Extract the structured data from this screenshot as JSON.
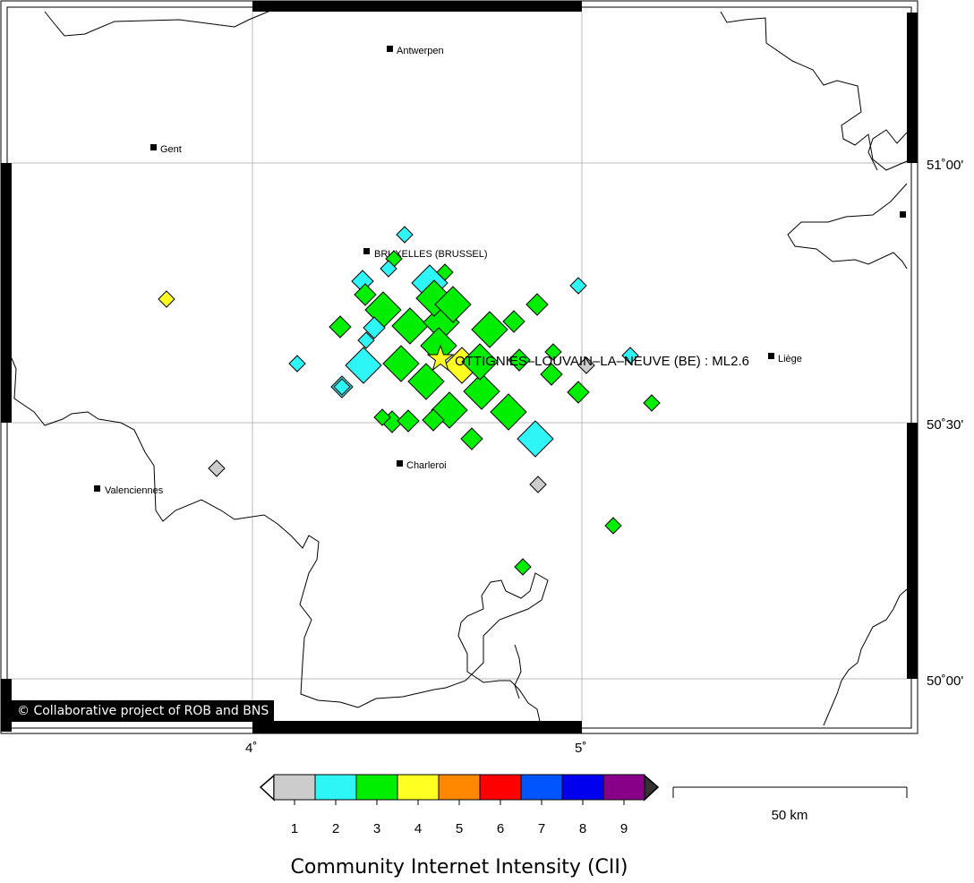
{
  "map": {
    "epicenter_label": "OTTIGNIES–LOUVAIN–LA–NEUVE (BE) : ML2.6",
    "credit": "© Collaborative project of ROB and BNS",
    "lon_labels": [
      "4˚",
      "5˚"
    ],
    "lat_labels": [
      "51˚00'",
      "50˚30'",
      "50˚00'"
    ],
    "cities": [
      {
        "name": "Antwerpen"
      },
      {
        "name": "Gent"
      },
      {
        "name": "BRUXELLES (BRUSSEL)"
      },
      {
        "name": "Charleroi"
      },
      {
        "name": "Valenciennes"
      },
      {
        "name": "Liège"
      }
    ],
    "border_color": "#000000",
    "grid_color": "#bbbbbb"
  },
  "legend": {
    "title": "Community Internet Intensity (CII)",
    "levels": [
      {
        "value": "1",
        "color": "#cccccc"
      },
      {
        "value": "2",
        "color": "#2ff6f6"
      },
      {
        "value": "3",
        "color": "#00ee00"
      },
      {
        "value": "4",
        "color": "#ffff22"
      },
      {
        "value": "5",
        "color": "#ff8800"
      },
      {
        "value": "6",
        "color": "#ff0000"
      },
      {
        "value": "7",
        "color": "#0055ff"
      },
      {
        "value": "8",
        "color": "#0000ee"
      },
      {
        "value": "9",
        "color": "#880088"
      }
    ],
    "scale_bar_label": "50 km"
  },
  "reports": [
    {
      "intensity": 4,
      "size": "s"
    },
    {
      "intensity": 2,
      "size": "s"
    },
    {
      "intensity": 3,
      "size": "s"
    },
    {
      "intensity": 2,
      "size": "s"
    },
    {
      "intensity": 3,
      "size": "m"
    },
    {
      "intensity": 2,
      "size": "m"
    },
    {
      "intensity": 2,
      "size": "m"
    },
    {
      "intensity": 3,
      "size": "m"
    },
    {
      "intensity": 3,
      "size": "l"
    },
    {
      "intensity": 3,
      "size": "l"
    },
    {
      "intensity": 3,
      "size": "l"
    },
    {
      "intensity": 2,
      "size": "m"
    },
    {
      "intensity": 2,
      "size": "l"
    },
    {
      "intensity": 3,
      "size": "l"
    },
    {
      "intensity": 3,
      "size": "l"
    },
    {
      "intensity": 3,
      "size": "l"
    },
    {
      "intensity": 3,
      "size": "l"
    },
    {
      "intensity": 3,
      "size": "m"
    },
    {
      "intensity": 3,
      "size": "m"
    },
    {
      "intensity": 3,
      "size": "m"
    },
    {
      "intensity": 2,
      "size": "s"
    },
    {
      "intensity": 2,
      "size": "l"
    },
    {
      "intensity": 3,
      "size": "l"
    },
    {
      "intensity": 3,
      "size": "l"
    },
    {
      "intensity": 4,
      "size": "l"
    },
    {
      "intensity": 3,
      "size": "l"
    },
    {
      "intensity": 3,
      "size": "m"
    },
    {
      "intensity": 3,
      "size": "s"
    },
    {
      "intensity": 3,
      "size": "l"
    },
    {
      "intensity": 1,
      "size": "s"
    },
    {
      "intensity": 2,
      "size": "s"
    },
    {
      "intensity": 3,
      "size": "m"
    },
    {
      "intensity": 3,
      "size": "s"
    },
    {
      "intensity": 2,
      "size": "s"
    },
    {
      "intensity": 2,
      "size": "s"
    },
    {
      "intensity": 3,
      "size": "s"
    },
    {
      "intensity": 3,
      "size": "m"
    },
    {
      "intensity": 3,
      "size": "m"
    },
    {
      "intensity": 3,
      "size": "l"
    },
    {
      "intensity": 3,
      "size": "m"
    },
    {
      "intensity": 3,
      "size": "l"
    },
    {
      "intensity": 2,
      "size": "l"
    },
    {
      "intensity": 2,
      "size": "s"
    },
    {
      "intensity": 1,
      "size": "s"
    },
    {
      "intensity": 1,
      "size": "s"
    },
    {
      "intensity": 3,
      "size": "s"
    },
    {
      "intensity": 3,
      "size": "s"
    },
    {
      "intensity": 3,
      "size": "s"
    },
    {
      "intensity": 3,
      "size": "m"
    }
  ]
}
